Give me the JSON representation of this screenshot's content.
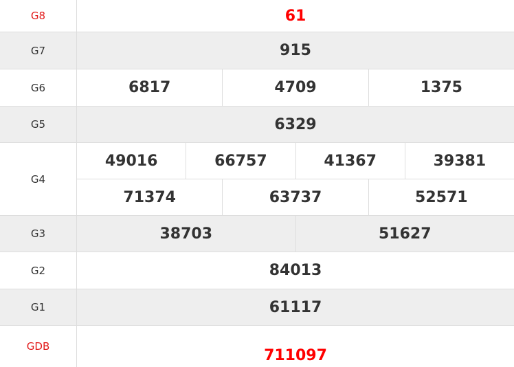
{
  "colors": {
    "highlight": "#ff0000",
    "label_highlight": "#e21b1b",
    "stripe": "#eeeeee",
    "border": "#dddddd",
    "text": "#333333"
  },
  "prizes": [
    {
      "label": "G8",
      "numbers": [
        [
          "61"
        ]
      ],
      "highlight": true
    },
    {
      "label": "G7",
      "numbers": [
        [
          "915"
        ]
      ]
    },
    {
      "label": "G6",
      "numbers": [
        [
          "6817",
          "4709",
          "1375"
        ]
      ]
    },
    {
      "label": "G5",
      "numbers": [
        [
          "6329"
        ]
      ]
    },
    {
      "label": "G4",
      "numbers": [
        [
          "49016",
          "66757",
          "41367",
          "39381"
        ],
        [
          "71374",
          "63737",
          "52571"
        ]
      ]
    },
    {
      "label": "G3",
      "numbers": [
        [
          "38703",
          "51627"
        ]
      ]
    },
    {
      "label": "G2",
      "numbers": [
        [
          "84013"
        ]
      ]
    },
    {
      "label": "G1",
      "numbers": [
        [
          "61117"
        ]
      ]
    },
    {
      "label": "GDB",
      "numbers": [
        [
          "711097"
        ]
      ],
      "highlight": true
    }
  ]
}
